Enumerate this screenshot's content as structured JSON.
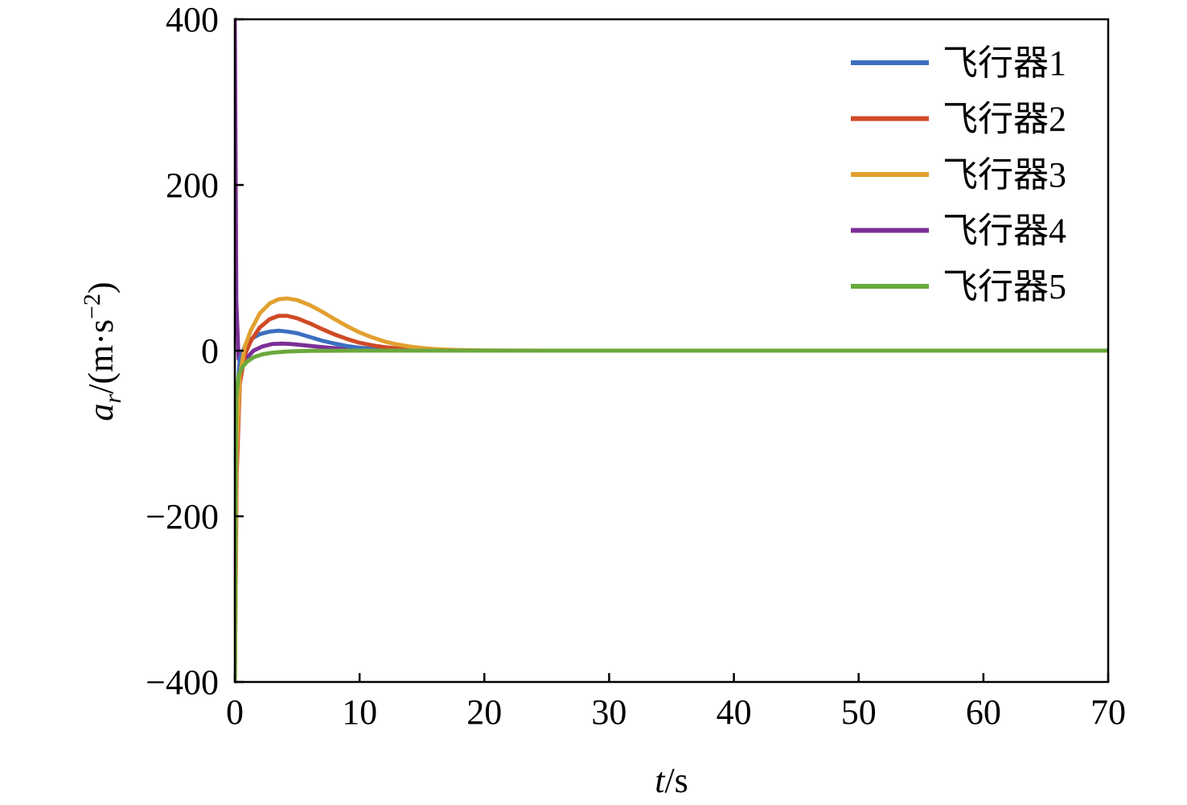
{
  "chart_data": {
    "type": "line",
    "xlabel": {
      "var": "t",
      "unit": "/s"
    },
    "ylabel": {
      "var": "a",
      "sub": "r",
      "unit_prefix": "/(m·s",
      "sup": "−2",
      "unit_suffix": ")"
    },
    "xlim": [
      0,
      70
    ],
    "ylim": [
      -400,
      400
    ],
    "xticks": [
      0,
      10,
      20,
      30,
      40,
      50,
      60,
      70
    ],
    "xtick_labels": [
      "0",
      "10",
      "20",
      "30",
      "40",
      "50",
      "60",
      "70"
    ],
    "yticks": [
      -400,
      -200,
      0,
      200,
      400
    ],
    "ytick_labels": [
      "−400",
      "−200",
      "0",
      "200",
      "400"
    ],
    "grid": false,
    "legend_position": "top-right",
    "series": [
      {
        "name": "飞行器1",
        "color": "#3d6fbf",
        "x": [
          0,
          0.15,
          0.4,
          0.8,
          1.3,
          2,
          2.8,
          3.5,
          4.2,
          5,
          6,
          7,
          8,
          9,
          10,
          11,
          12,
          13,
          14,
          15,
          16,
          18,
          20,
          25,
          30,
          70
        ],
        "y": [
          -400,
          -60,
          -10,
          5,
          14,
          20,
          23,
          24,
          23,
          21,
          16.5,
          12,
          8.5,
          5.5,
          3.5,
          2.2,
          1.3,
          0.8,
          0.5,
          0.3,
          0.2,
          0.05,
          0,
          0,
          0,
          0
        ]
      },
      {
        "name": "飞行器2",
        "color": "#cf4a26",
        "x": [
          0,
          0.15,
          0.4,
          0.8,
          1.3,
          2,
          2.8,
          3.5,
          4.2,
          5,
          6,
          7,
          8,
          9,
          10,
          11,
          12,
          13,
          14,
          15,
          16,
          18,
          20,
          25,
          30,
          70
        ],
        "y": [
          -400,
          -150,
          -40,
          -5,
          12,
          28,
          38,
          42,
          42,
          39,
          33,
          26,
          19.5,
          14,
          9.5,
          6.5,
          4.2,
          2.7,
          1.7,
          1,
          0.6,
          0.2,
          0,
          0,
          0,
          0
        ]
      },
      {
        "name": "飞行器3",
        "color": "#e2a030",
        "x": [
          0,
          0.15,
          0.4,
          0.8,
          1.3,
          2,
          2.8,
          3.5,
          4.2,
          5,
          6,
          7,
          8,
          9,
          10,
          11,
          12,
          13,
          14,
          15,
          16,
          17,
          18,
          20,
          25,
          30,
          70
        ],
        "y": [
          -400,
          -120,
          -30,
          5,
          25,
          45,
          57,
          62,
          63,
          61,
          55,
          47,
          38,
          29.5,
          22,
          16,
          11,
          7.5,
          5,
          3.2,
          2,
          1.2,
          0.7,
          0.2,
          0,
          0,
          0
        ]
      },
      {
        "name": "飞行器4",
        "color": "#7b2f96",
        "x": [
          0,
          0.12,
          0.3,
          0.6,
          1,
          1.5,
          2.2,
          3,
          3.8,
          4.5,
          5.5,
          6.5,
          7.5,
          9,
          11,
          13,
          15,
          20,
          30,
          70
        ],
        "y": [
          400,
          60,
          -10,
          -15,
          -8,
          0,
          5,
          8,
          8.5,
          8,
          6.5,
          5,
          3.5,
          2,
          0.8,
          0.3,
          0.1,
          0,
          0,
          0
        ]
      },
      {
        "name": "飞行器5",
        "color": "#6aa83c",
        "x": [
          0,
          0.1,
          0.3,
          0.6,
          1,
          1.5,
          2.2,
          3,
          4,
          5,
          6,
          8,
          10,
          15,
          20,
          30,
          70
        ],
        "y": [
          -400,
          -60,
          -30,
          -20,
          -13,
          -8,
          -4.5,
          -2.5,
          -1.2,
          -0.6,
          -0.3,
          -0.1,
          0,
          0,
          0,
          0,
          0
        ]
      }
    ]
  }
}
